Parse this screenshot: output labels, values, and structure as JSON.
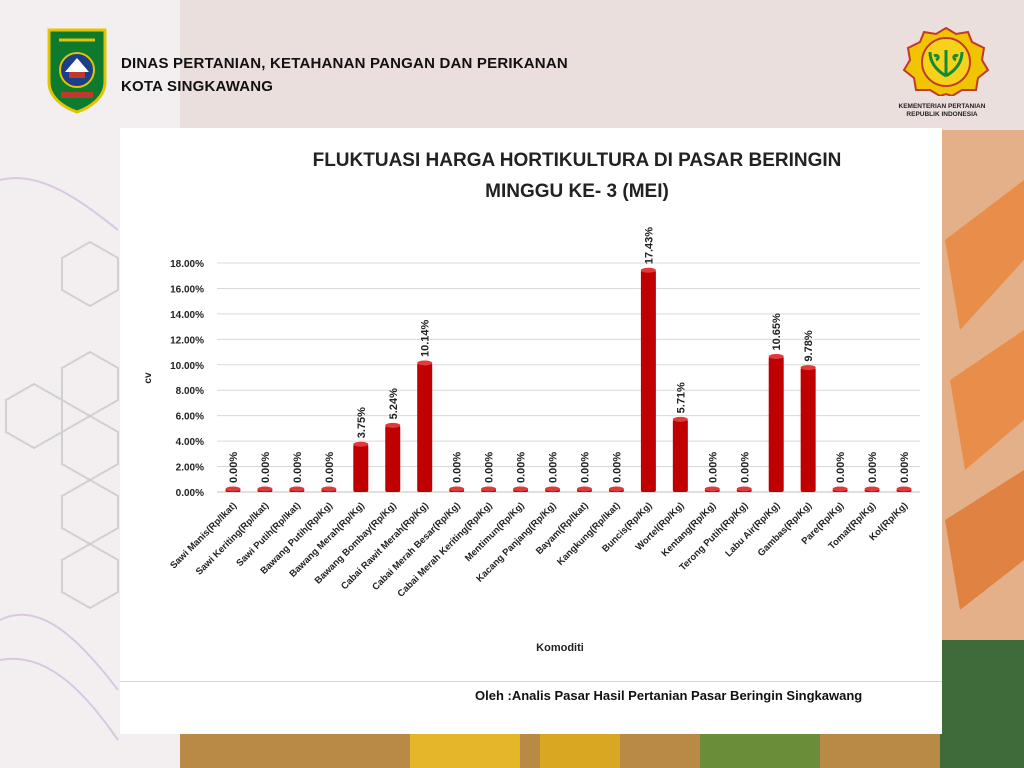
{
  "header": {
    "line1": "DINAS PERTANIAN, KETAHANAN PANGAN DAN PERIKANAN",
    "line2": "KOTA SINGKAWANG",
    "ministry_line1": "KEMENTERIAN PERTANIAN",
    "ministry_line2": "REPUBLIK INDONESIA"
  },
  "footer": {
    "credit": "Oleh :Analis Pasar Hasil Pertanian Pasar Beringin Singkawang"
  },
  "chart_data": {
    "type": "bar",
    "title_line1": "FLUKTUASI HARGA HORTIKULTURA DI PASAR BERINGIN",
    "title_line2": "MINGGU KE- 3 (MEI)",
    "xlabel": "Komoditi",
    "ylabel": "cv",
    "ylim": [
      0,
      18
    ],
    "yticks": [
      0,
      2,
      4,
      6,
      8,
      10,
      12,
      14,
      16,
      18
    ],
    "ytick_labels": [
      "0.00%",
      "2.00%",
      "4.00%",
      "6.00%",
      "8.00%",
      "10.00%",
      "12.00%",
      "14.00%",
      "16.00%",
      "18.00%"
    ],
    "grid": true,
    "bar_color": "#c00000",
    "categories": [
      "Sawi Manis(Rp/Ikat)",
      "Sawi Keriting(Rp/Ikat)",
      "Sawi Putih(Rp/Ikat)",
      "Bawang Putih(Rp/Kg)",
      "Bawang Merah(Rp/Kg)",
      "Bawang Bombay(Rp/Kg)",
      "Cabai Rawit Merah(Rp/Kg)",
      "Cabai Merah Besar(Rp/Kg)",
      "Cabai Merah Keriting(Rp/Kg)",
      "Mentimun(Rp/Kg)",
      "Kacang Panjang(Rp/Kg)",
      "Bayam(Rp/Ikat)",
      "Kangkung(Rp/Ikat)",
      "Buncis(Rp/Kg)",
      "Wortel(Rp/Kg)",
      "Kentang(Rp/Kg)",
      "Terong Putih(Rp/Kg)",
      "Labu Air(Rp/Kg)",
      "Gambas(Rp/Kg)",
      "Pare(Rp/Kg)",
      "Tomat(Rp/Kg)",
      "Kol(Rp/Kg)"
    ],
    "values": [
      0,
      0,
      0,
      0,
      3.75,
      5.24,
      10.14,
      0,
      0,
      0,
      0,
      0,
      0,
      17.43,
      5.71,
      0,
      0,
      10.65,
      9.78,
      0,
      0,
      0
    ],
    "data_labels": [
      "0.00%",
      "0.00%",
      "0.00%",
      "0.00%",
      "3.75%",
      "5.24%",
      "10.14%",
      "0.00%",
      "0.00%",
      "0.00%",
      "0.00%",
      "0.00%",
      "0.00%",
      "17.43%",
      "5.71%",
      "0.00%",
      "0.00%",
      "10.65%",
      "9.78%",
      "0.00%",
      "0.00%",
      "0.00%"
    ]
  }
}
